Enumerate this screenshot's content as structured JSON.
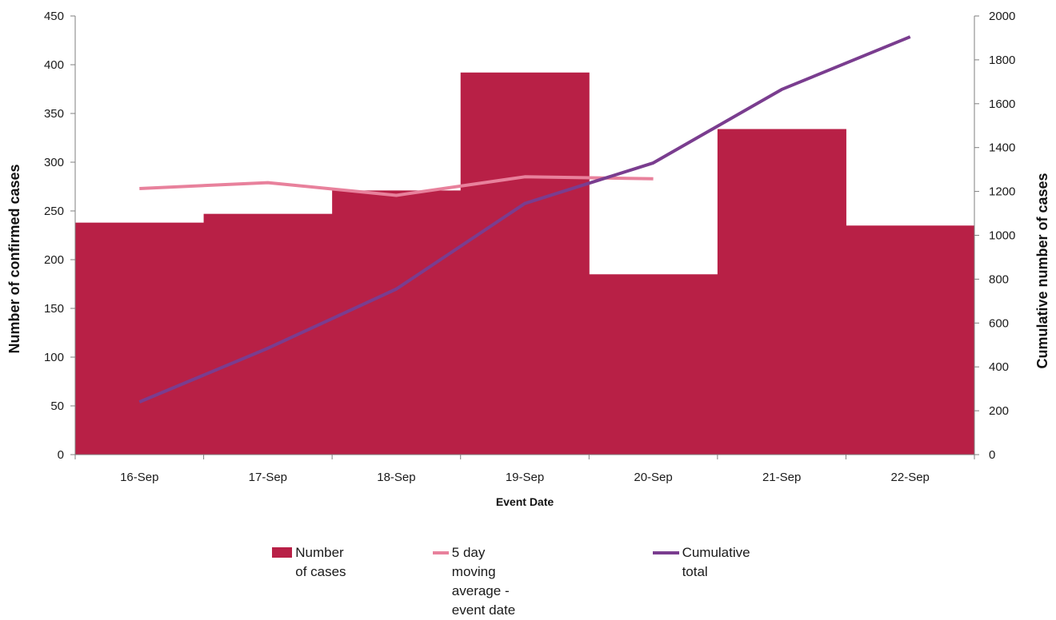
{
  "chart_data": {
    "type": "bar",
    "categories": [
      "16-Sep",
      "17-Sep",
      "18-Sep",
      "19-Sep",
      "20-Sep",
      "21-Sep",
      "22-Sep"
    ],
    "series": [
      {
        "name": "Number of cases",
        "type": "bar",
        "axis": "left",
        "color": "#b82046",
        "values": [
          238,
          247,
          271,
          392,
          185,
          334,
          235
        ]
      },
      {
        "name": "5 day moving average - event date",
        "type": "line",
        "axis": "left",
        "color": "#e8819c",
        "values": [
          273,
          279,
          266,
          285,
          283,
          null,
          null
        ]
      },
      {
        "name": "Cumulative total",
        "type": "line",
        "axis": "right",
        "color": "#7a3d8f",
        "values": [
          240,
          485,
          755,
          1145,
          1330,
          1665,
          1905
        ]
      }
    ],
    "xlabel": "Event Date",
    "ylabel": "Number of confirmed cases",
    "y2label": "Cumulative number of cases",
    "ylim": [
      0,
      450
    ],
    "yticks": [
      0,
      50,
      100,
      150,
      200,
      250,
      300,
      350,
      400,
      450
    ],
    "y2lim": [
      0,
      2000
    ],
    "y2ticks": [
      0,
      200,
      400,
      600,
      800,
      1000,
      1200,
      1400,
      1600,
      1800,
      2000
    ],
    "grid": false,
    "legend_position": "bottom",
    "legend": {
      "bar_label": "Number of cases",
      "avg_label_line1": "5 day moving average -",
      "avg_label_line2": "event date",
      "cum_label": "Cumulative total"
    }
  }
}
